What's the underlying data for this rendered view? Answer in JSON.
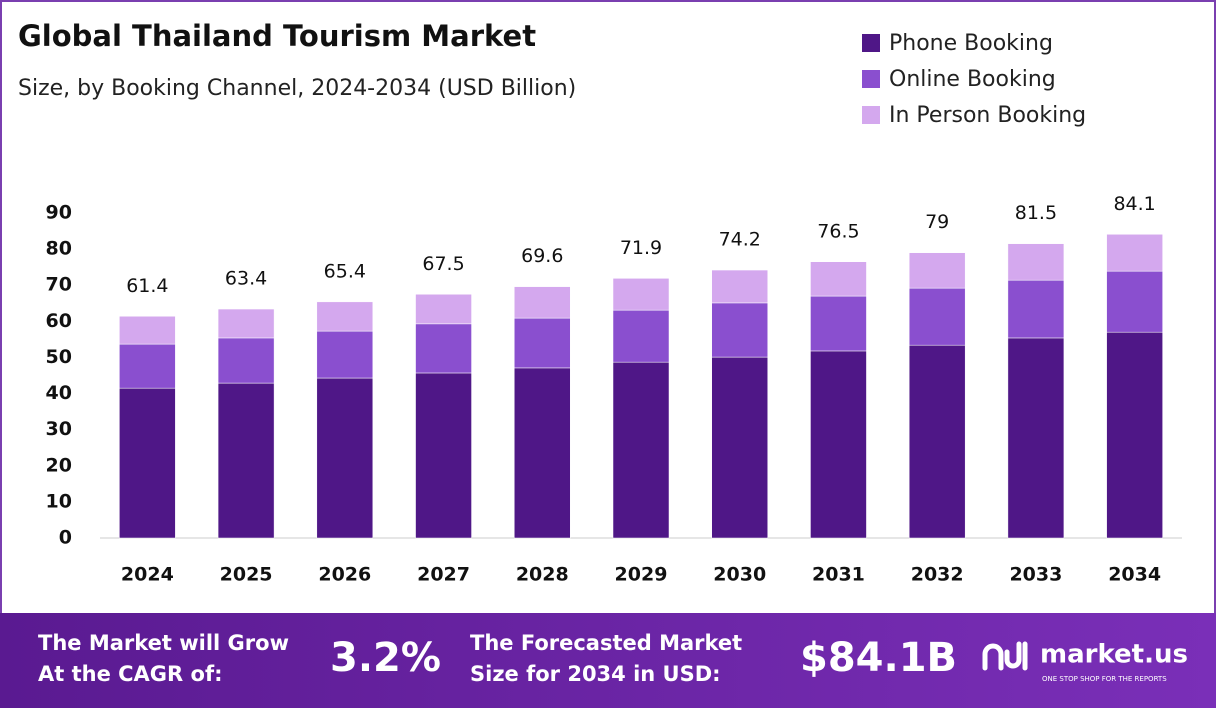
{
  "chart_data": {
    "type": "stacked-bar",
    "title": "Global Thailand Tourism Market",
    "subtitle": "Size, by Booking Channel, 2024-2034 (USD Billion)",
    "categories": [
      "2024",
      "2025",
      "2026",
      "2027",
      "2028",
      "2029",
      "2030",
      "2031",
      "2032",
      "2033",
      "2034"
    ],
    "series": [
      {
        "name": "Phone Booking",
        "color": "#4f1787",
        "values": [
          41.5,
          42.9,
          44.3,
          45.7,
          47.1,
          48.7,
          50.1,
          51.8,
          53.4,
          55.4,
          57.0
        ]
      },
      {
        "name": "Online Booking",
        "color": "#8a4fcf",
        "values": [
          12.2,
          12.5,
          13.0,
          13.6,
          13.8,
          14.4,
          15.0,
          15.2,
          15.8,
          16.0,
          16.9
        ]
      },
      {
        "name": "In Person Booking",
        "color": "#d4a8ee",
        "values": [
          7.7,
          8.0,
          8.1,
          8.2,
          8.7,
          8.8,
          9.1,
          9.5,
          9.8,
          10.1,
          10.2
        ]
      }
    ],
    "totals": [
      61.4,
      63.4,
      65.4,
      67.5,
      69.6,
      71.9,
      74.2,
      76.5,
      79.0,
      81.5,
      84.1
    ],
    "ylim": [
      0,
      90
    ],
    "yticks": [
      0,
      10,
      20,
      30,
      40,
      50,
      60,
      70,
      80,
      90
    ],
    "grid": false
  },
  "footer": {
    "cagr_text": [
      "The Market will Grow",
      "At the CAGR of:"
    ],
    "cagr": "3.2%",
    "forecast_text": [
      "The Forecasted Market",
      "Size for 2034 in USD:"
    ],
    "forecast": "$84.1B",
    "brand": "market.us",
    "tagline": "ONE STOP SHOP FOR THE REPORTS"
  }
}
